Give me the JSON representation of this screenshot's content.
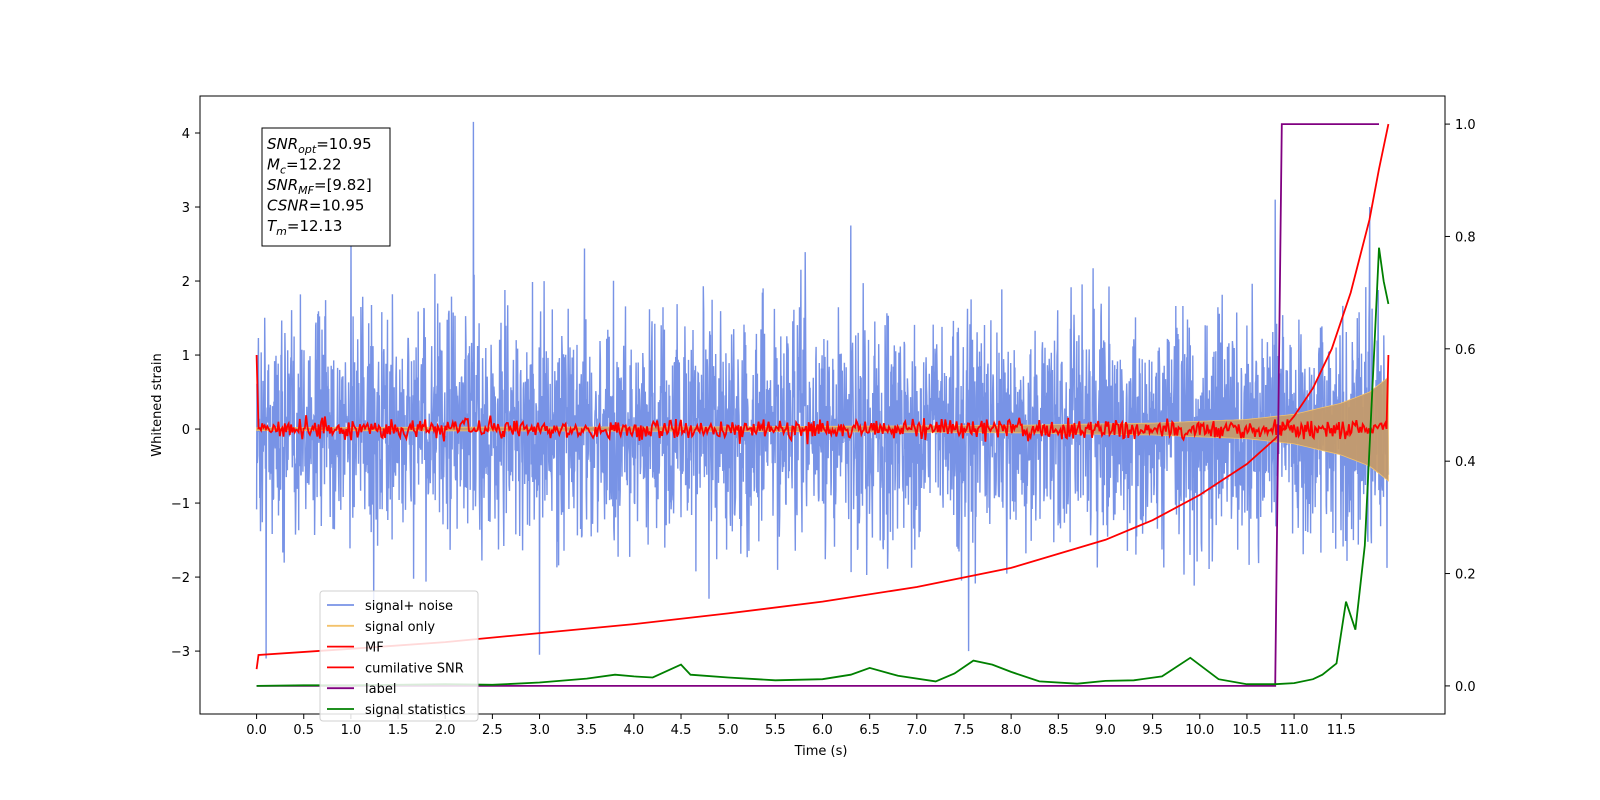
{
  "chart_data": {
    "type": "line",
    "xlabel": "Time (s)",
    "ylabel": "Whitened strain",
    "xlim": [
      -0.6,
      12.6
    ],
    "ylim": [
      -3.85,
      4.5
    ],
    "y2lim": [
      -0.05,
      1.05
    ],
    "grid": false,
    "legend_position": "lower-left",
    "x_ticks": [
      "0.0",
      "0.5",
      "1.0",
      "1.5",
      "2.0",
      "2.5",
      "3.0",
      "3.5",
      "4.0",
      "4.5",
      "5.0",
      "5.5",
      "6.0",
      "6.5",
      "7.0",
      "7.5",
      "8.0",
      "8.5",
      "9.0",
      "9.5",
      "10.0",
      "10.5",
      "11.0",
      "11.5"
    ],
    "y_ticks": [
      "4",
      "3",
      "2",
      "1",
      "0",
      "−1",
      "−2",
      "−3"
    ],
    "y2_ticks": [
      "1.0",
      "0.8",
      "0.6",
      "0.4",
      "0.2",
      "0.0"
    ],
    "annotation": {
      "lines": [
        {
          "base": "SNR",
          "sub": "opt",
          "value": "=10.95"
        },
        {
          "base": "M",
          "sub": "c",
          "value": "=12.22"
        },
        {
          "base": "SNR",
          "sub": "MF",
          "value": "=[9.82]"
        },
        {
          "base": "CSNR",
          "sub": "",
          "value": "=10.95"
        },
        {
          "base": "T",
          "sub": "m",
          "value": "=12.13"
        }
      ]
    },
    "series": [
      {
        "name": "signal+ noise",
        "color": "#7893e6",
        "axis": "left",
        "style": "noise-band",
        "range": [
          0.0,
          12.0
        ],
        "spread": 0.75,
        "extremes": [
          [
            2.3,
            4.15
          ],
          [
            0.1,
            -3.1
          ],
          [
            7.55,
            -3.0
          ],
          [
            3.0,
            -3.05
          ],
          [
            10.8,
            3.1
          ],
          [
            11.8,
            3.0
          ],
          [
            1.0,
            2.55
          ],
          [
            6.3,
            2.75
          ]
        ]
      },
      {
        "name": "signal only",
        "color": "#f3c26b",
        "axis": "left",
        "style": "chirp-envelope",
        "points": [
          [
            0.0,
            0.02
          ],
          [
            5.0,
            0.03
          ],
          [
            8.0,
            0.05
          ],
          [
            9.5,
            0.08
          ],
          [
            10.5,
            0.13
          ],
          [
            11.0,
            0.2
          ],
          [
            11.5,
            0.35
          ],
          [
            11.8,
            0.5
          ],
          [
            12.0,
            0.7
          ]
        ]
      },
      {
        "name": "MF",
        "color": "#ff0000",
        "axis": "left",
        "style": "jitter",
        "start": [
          0.0,
          1.0
        ],
        "end": [
          12.0,
          1.0
        ],
        "amplitude": 0.09,
        "range": [
          0.02,
          11.98
        ]
      },
      {
        "name": "cumilative SNR",
        "color": "#ff0000",
        "axis": "right",
        "points": [
          [
            0.0,
            0.03
          ],
          [
            0.02,
            0.055
          ],
          [
            1.0,
            0.066
          ],
          [
            2.0,
            0.078
          ],
          [
            3.0,
            0.094
          ],
          [
            4.0,
            0.11
          ],
          [
            5.0,
            0.129
          ],
          [
            6.0,
            0.15
          ],
          [
            7.0,
            0.176
          ],
          [
            8.0,
            0.21
          ],
          [
            9.0,
            0.26
          ],
          [
            9.5,
            0.295
          ],
          [
            10.0,
            0.34
          ],
          [
            10.5,
            0.395
          ],
          [
            10.8,
            0.44
          ],
          [
            11.0,
            0.48
          ],
          [
            11.2,
            0.53
          ],
          [
            11.4,
            0.6
          ],
          [
            11.6,
            0.7
          ],
          [
            11.8,
            0.83
          ],
          [
            11.9,
            0.92
          ],
          [
            12.0,
            1.0
          ]
        ]
      },
      {
        "name": "label",
        "color": "#800080",
        "axis": "right",
        "points": [
          [
            0.0,
            0.0
          ],
          [
            10.8,
            0.0
          ],
          [
            10.87,
            1.0
          ],
          [
            11.9,
            1.0
          ]
        ]
      },
      {
        "name": "signal statistics",
        "color": "#008000",
        "axis": "right",
        "points": [
          [
            0.0,
            0.0
          ],
          [
            0.5,
            0.001
          ],
          [
            1.0,
            0.001
          ],
          [
            1.5,
            0.002
          ],
          [
            2.0,
            0.003
          ],
          [
            2.5,
            0.002
          ],
          [
            3.0,
            0.006
          ],
          [
            3.5,
            0.013
          ],
          [
            3.8,
            0.02
          ],
          [
            4.0,
            0.017
          ],
          [
            4.2,
            0.015
          ],
          [
            4.5,
            0.038
          ],
          [
            4.6,
            0.02
          ],
          [
            5.0,
            0.015
          ],
          [
            5.5,
            0.01
          ],
          [
            6.0,
            0.012
          ],
          [
            6.3,
            0.02
          ],
          [
            6.5,
            0.032
          ],
          [
            6.8,
            0.018
          ],
          [
            7.2,
            0.008
          ],
          [
            7.4,
            0.022
          ],
          [
            7.6,
            0.045
          ],
          [
            7.8,
            0.038
          ],
          [
            8.0,
            0.025
          ],
          [
            8.3,
            0.008
          ],
          [
            8.7,
            0.004
          ],
          [
            9.0,
            0.009
          ],
          [
            9.3,
            0.01
          ],
          [
            9.6,
            0.017
          ],
          [
            9.9,
            0.05
          ],
          [
            10.2,
            0.012
          ],
          [
            10.5,
            0.003
          ],
          [
            10.8,
            0.003
          ],
          [
            11.0,
            0.005
          ],
          [
            11.2,
            0.012
          ],
          [
            11.3,
            0.02
          ],
          [
            11.45,
            0.04
          ],
          [
            11.55,
            0.15
          ],
          [
            11.65,
            0.1
          ],
          [
            11.75,
            0.25
          ],
          [
            11.85,
            0.6
          ],
          [
            11.9,
            0.78
          ],
          [
            11.95,
            0.72
          ],
          [
            12.0,
            0.68
          ]
        ]
      }
    ]
  }
}
